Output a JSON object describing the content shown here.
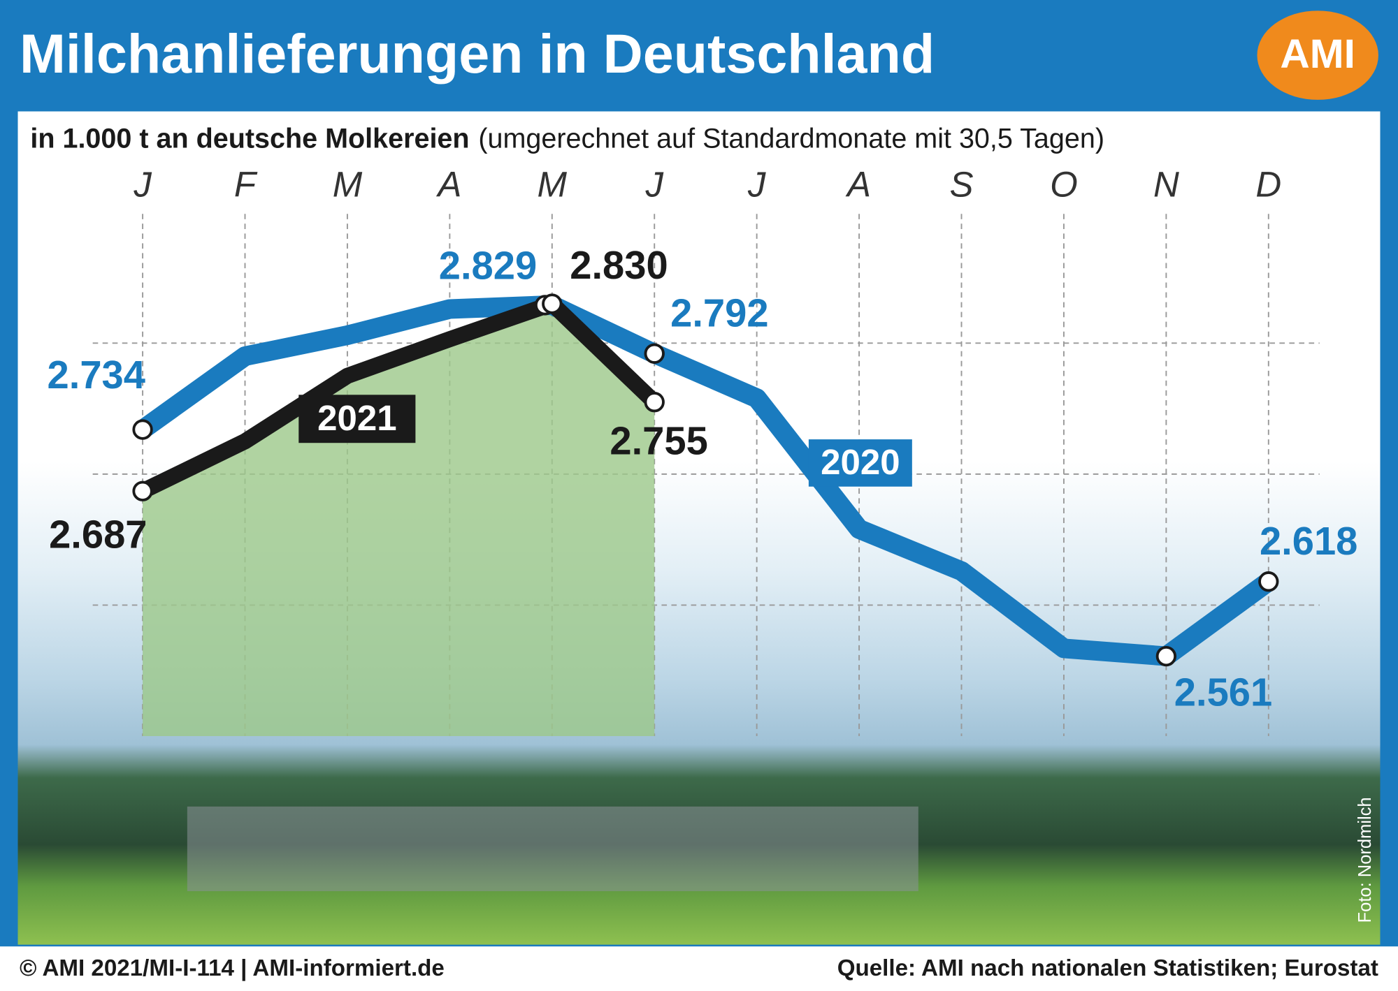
{
  "chart_data": {
    "type": "line",
    "title": "Milchanlieferungen in Deutschland",
    "subtitle_bold": "in 1.000 t an deutsche Molkereien",
    "subtitle": "(umgerechnet auf Standardmonate mit 30,5 Tagen)",
    "logo": "AMI",
    "footer_left": "© AMI 2021/MI-I-114 | AMI-informiert.de",
    "footer_right": "Quelle: AMI nach nationalen Statistiken; Eurostat",
    "photo_credit": "Foto: Nordmilch",
    "categories": [
      "J",
      "F",
      "M",
      "A",
      "M",
      "J",
      "J",
      "A",
      "S",
      "O",
      "N",
      "D"
    ],
    "ylim": [
      2500,
      2900
    ],
    "yticks": [
      2600,
      2700,
      2800
    ],
    "grid": true,
    "series": [
      {
        "name": "2020",
        "color": "#1a7bbf",
        "values": [
          2734,
          2790,
          2806,
          2826,
          2829,
          2792,
          2758,
          2658,
          2626,
          2567,
          2561,
          2618
        ],
        "value_labels": [
          "2.734",
          null,
          null,
          null,
          "2.829",
          "2.792",
          null,
          null,
          null,
          null,
          "2.561",
          "2.618"
        ]
      },
      {
        "name": "2021",
        "color": "#1a1a1a",
        "area_color": "#9cc88a",
        "values": [
          2687,
          2725,
          2775,
          2803,
          2830,
          2755,
          null,
          null,
          null,
          null,
          null,
          null
        ],
        "value_labels": [
          "2.687",
          null,
          null,
          null,
          "2.830",
          "2.755",
          null,
          null,
          null,
          null,
          null,
          null
        ]
      }
    ]
  }
}
